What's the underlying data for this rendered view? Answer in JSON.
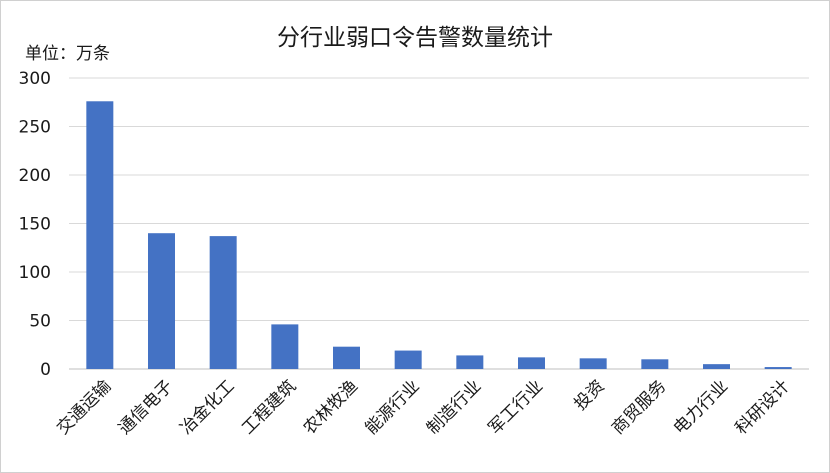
{
  "chart_data": {
    "type": "bar",
    "title": "分行业弱口令告警数量统计",
    "unit_label": "单位：万条",
    "categories": [
      "交通运输",
      "通信电子",
      "冶金化工",
      "工程建筑",
      "农林牧渔",
      "能源行业",
      "制造行业",
      "军工行业",
      "投资",
      "商贸服务",
      "电力行业",
      "科研设计"
    ],
    "values": [
      276,
      140,
      137,
      46,
      23,
      19,
      14,
      12,
      11,
      10,
      5,
      2
    ],
    "ylim": [
      0,
      300
    ],
    "yticks": [
      0,
      50,
      100,
      150,
      200,
      250,
      300
    ],
    "grid": true,
    "bar_color": "#4472C4"
  }
}
